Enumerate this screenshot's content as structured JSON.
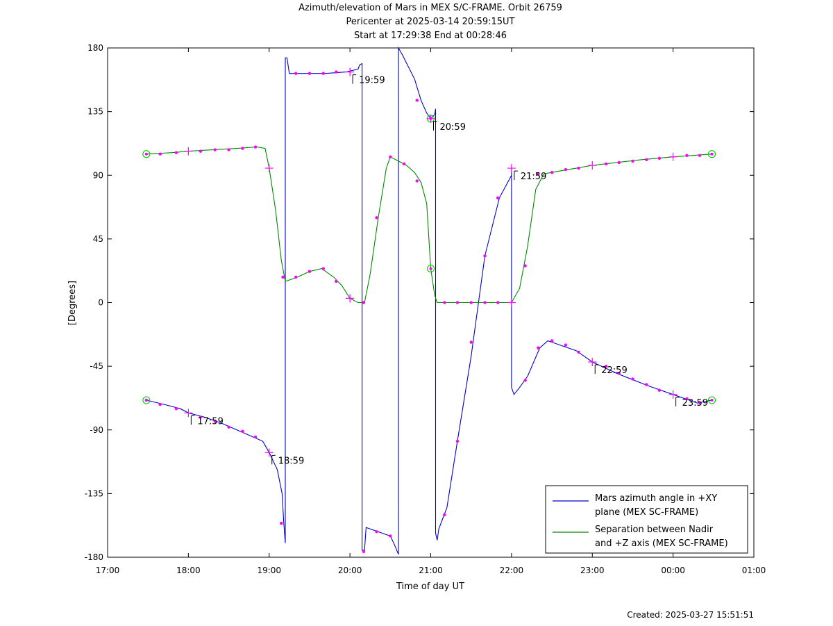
{
  "chart_data": {
    "type": "line",
    "title_lines": [
      "Azimuth/elevation of Mars in MEX S/C-FRAME.  Orbit 26759",
      "Pericenter at 2025-03-14 20:59:15UT",
      "Start at 17:29:38 End at 00:28:46"
    ],
    "xlabel": "Time of day UT",
    "ylabel": "[Degrees]",
    "x_unit": "hours since 17:00 UT",
    "xlim": [
      0,
      8
    ],
    "ylim": [
      -180,
      180
    ],
    "xticks": [
      {
        "x": 0,
        "label": "17:00"
      },
      {
        "x": 1,
        "label": "18:00"
      },
      {
        "x": 2,
        "label": "19:00"
      },
      {
        "x": 3,
        "label": "20:00"
      },
      {
        "x": 4,
        "label": "21:00"
      },
      {
        "x": 5,
        "label": "22:00"
      },
      {
        "x": 6,
        "label": "23:00"
      },
      {
        "x": 7,
        "label": "00:00"
      },
      {
        "x": 8,
        "label": "01:00"
      }
    ],
    "yticks": [
      {
        "y": 180,
        "label": "180"
      },
      {
        "y": 135,
        "label": "135"
      },
      {
        "y": 90,
        "label": "90"
      },
      {
        "y": 45,
        "label": "45"
      },
      {
        "y": 0,
        "label": "0"
      },
      {
        "y": -45,
        "label": "-45"
      },
      {
        "y": -90,
        "label": "-90"
      },
      {
        "y": -135,
        "label": "-135"
      },
      {
        "y": -180,
        "label": "-180"
      }
    ],
    "series": [
      {
        "name": "Mars azimuth angle in +XY plane (MEX SC-FRAME)",
        "legend_lines": [
          "Mars azimuth angle in +XY",
          "plane (MEX SC-FRAME)"
        ],
        "color": "#0000cc",
        "points": [
          [
            0.48,
            -69
          ],
          [
            0.7,
            -72
          ],
          [
            0.9,
            -75
          ],
          [
            1.0,
            -78
          ],
          [
            1.2,
            -81
          ],
          [
            1.4,
            -85
          ],
          [
            1.6,
            -90
          ],
          [
            1.8,
            -95
          ],
          [
            1.92,
            -98
          ],
          [
            2.0,
            -106
          ],
          [
            2.1,
            -118
          ],
          [
            2.16,
            -135
          ],
          [
            2.18,
            -155
          ],
          [
            2.2,
            -170
          ],
          [
            2.2,
            -170
          ],
          [
            2.2,
            173
          ],
          [
            2.22,
            173
          ],
          [
            2.25,
            162
          ],
          [
            2.5,
            162
          ],
          [
            2.7,
            162
          ],
          [
            2.95,
            163
          ],
          [
            3.1,
            165
          ],
          [
            3.12,
            168
          ],
          [
            3.15,
            169
          ],
          [
            3.15,
            -175
          ],
          [
            3.18,
            -175
          ],
          [
            3.2,
            -159
          ],
          [
            3.35,
            -162
          ],
          [
            3.5,
            -165
          ],
          [
            3.55,
            -171
          ],
          [
            3.6,
            -178
          ],
          [
            3.6,
            -178
          ],
          [
            3.6,
            180
          ],
          [
            3.65,
            175
          ],
          [
            3.8,
            158
          ],
          [
            3.88,
            143
          ],
          [
            3.95,
            134
          ],
          [
            4.0,
            130
          ],
          [
            4.05,
            133
          ],
          [
            4.06,
            137
          ],
          [
            4.06,
            -163
          ],
          [
            4.08,
            -168
          ],
          [
            4.1,
            -160
          ],
          [
            4.2,
            -145
          ],
          [
            4.33,
            -98
          ],
          [
            4.5,
            -38
          ],
          [
            4.67,
            33
          ],
          [
            4.85,
            74
          ],
          [
            5.0,
            90
          ],
          [
            5.0,
            95
          ],
          [
            5.0,
            -60
          ],
          [
            5.03,
            -65
          ],
          [
            5.1,
            -60
          ],
          [
            5.2,
            -52
          ],
          [
            5.35,
            -32
          ],
          [
            5.45,
            -27
          ],
          [
            5.6,
            -30
          ],
          [
            5.8,
            -34
          ],
          [
            6.0,
            -42
          ],
          [
            6.3,
            -50
          ],
          [
            6.7,
            -59
          ],
          [
            7.0,
            -65
          ],
          [
            7.3,
            -71
          ],
          [
            7.48,
            -69
          ]
        ],
        "markers": [
          [
            0.48,
            -69
          ],
          [
            4.0,
            130
          ],
          [
            7.48,
            -69
          ]
        ],
        "plus_markers": [
          [
            1.0,
            -78
          ],
          [
            2.0,
            -106
          ],
          [
            3.0,
            163
          ],
          [
            4.0,
            130
          ],
          [
            5.0,
            95
          ],
          [
            6.0,
            -42
          ],
          [
            7.0,
            -65
          ]
        ],
        "dots": [
          [
            0.48,
            -69
          ],
          [
            0.65,
            -72
          ],
          [
            0.85,
            -75
          ],
          [
            1.15,
            -81
          ],
          [
            1.33,
            -84
          ],
          [
            1.5,
            -88
          ],
          [
            1.67,
            -91
          ],
          [
            1.83,
            -95
          ],
          [
            2.15,
            -156
          ],
          [
            2.33,
            162
          ],
          [
            2.5,
            162
          ],
          [
            2.67,
            162
          ],
          [
            2.83,
            163
          ],
          [
            3.17,
            -176
          ],
          [
            3.33,
            -162
          ],
          [
            3.5,
            -165
          ],
          [
            3.83,
            143
          ],
          [
            4.17,
            -150
          ],
          [
            4.33,
            -98
          ],
          [
            4.5,
            -28
          ],
          [
            4.67,
            33
          ],
          [
            4.83,
            74
          ],
          [
            5.17,
            -55
          ],
          [
            5.33,
            -32
          ],
          [
            5.5,
            -27
          ],
          [
            5.67,
            -30
          ],
          [
            5.83,
            -35
          ],
          [
            6.17,
            -45
          ],
          [
            6.33,
            -50
          ],
          [
            6.5,
            -54
          ],
          [
            6.67,
            -58
          ],
          [
            6.83,
            -62
          ],
          [
            7.17,
            -68
          ],
          [
            7.33,
            -71
          ]
        ]
      },
      {
        "name": "Separation between Nadir and +Z axis (MEX SC-FRAME)",
        "legend_lines": [
          "Separation between Nadir",
          "and +Z axis (MEX SC-FRAME)"
        ],
        "color": "#008800",
        "points": [
          [
            0.48,
            105
          ],
          [
            0.8,
            106
          ],
          [
            1.0,
            107
          ],
          [
            1.3,
            108
          ],
          [
            1.6,
            109
          ],
          [
            1.85,
            110
          ],
          [
            1.95,
            109
          ],
          [
            2.0,
            95
          ],
          [
            2.08,
            65
          ],
          [
            2.15,
            30
          ],
          [
            2.2,
            15
          ],
          [
            2.35,
            18
          ],
          [
            2.5,
            22
          ],
          [
            2.65,
            24
          ],
          [
            2.8,
            18
          ],
          [
            2.9,
            12
          ],
          [
            3.0,
            3
          ],
          [
            3.1,
            0
          ],
          [
            3.18,
            0
          ],
          [
            3.25,
            20
          ],
          [
            3.35,
            60
          ],
          [
            3.45,
            95
          ],
          [
            3.5,
            103
          ],
          [
            3.6,
            100
          ],
          [
            3.7,
            97
          ],
          [
            3.8,
            92
          ],
          [
            3.88,
            85
          ],
          [
            3.95,
            70
          ],
          [
            4.0,
            24
          ],
          [
            4.05,
            5
          ],
          [
            4.08,
            0
          ],
          [
            4.5,
            0
          ],
          [
            4.9,
            0
          ],
          [
            5.0,
            0
          ],
          [
            5.1,
            10
          ],
          [
            5.2,
            40
          ],
          [
            5.3,
            80
          ],
          [
            5.4,
            91
          ],
          [
            5.6,
            93
          ],
          [
            5.8,
            95
          ],
          [
            6.0,
            97
          ],
          [
            6.3,
            99
          ],
          [
            6.6,
            101
          ],
          [
            7.0,
            103
          ],
          [
            7.48,
            105
          ]
        ],
        "markers": [
          [
            0.48,
            105
          ],
          [
            4.0,
            24
          ],
          [
            7.48,
            105
          ]
        ],
        "plus_markers": [
          [
            1.0,
            107
          ],
          [
            2.0,
            95
          ],
          [
            3.0,
            3
          ],
          [
            5.0,
            0
          ],
          [
            6.0,
            97
          ],
          [
            7.0,
            103
          ]
        ],
        "dots": [
          [
            0.65,
            105
          ],
          [
            0.85,
            106
          ],
          [
            1.15,
            107
          ],
          [
            1.33,
            108
          ],
          [
            1.5,
            108
          ],
          [
            1.67,
            109
          ],
          [
            1.83,
            110
          ],
          [
            2.17,
            18
          ],
          [
            2.33,
            18
          ],
          [
            2.5,
            22
          ],
          [
            2.67,
            24
          ],
          [
            2.83,
            15
          ],
          [
            3.17,
            0
          ],
          [
            3.33,
            60
          ],
          [
            3.5,
            103
          ],
          [
            3.67,
            98
          ],
          [
            3.83,
            86
          ],
          [
            4.17,
            0
          ],
          [
            4.33,
            0
          ],
          [
            4.5,
            0
          ],
          [
            4.67,
            0
          ],
          [
            4.83,
            0
          ],
          [
            5.17,
            26
          ],
          [
            5.33,
            91
          ],
          [
            5.5,
            92
          ],
          [
            5.67,
            94
          ],
          [
            5.83,
            95
          ],
          [
            6.17,
            98
          ],
          [
            6.33,
            99
          ],
          [
            6.5,
            100
          ],
          [
            6.67,
            101
          ],
          [
            6.83,
            102
          ],
          [
            7.17,
            104
          ],
          [
            7.33,
            104
          ]
        ]
      }
    ],
    "time_labels": [
      {
        "x": 1.0,
        "y": -78,
        "text": "17:59"
      },
      {
        "x": 2.0,
        "y": -106,
        "text": "18:59"
      },
      {
        "x": 3.0,
        "y": 163,
        "text": "19:59"
      },
      {
        "x": 4.0,
        "y": 130,
        "text": "20:59"
      },
      {
        "x": 5.0,
        "y": 95,
        "text": "21:59"
      },
      {
        "x": 6.0,
        "y": -42,
        "text": "22:59"
      },
      {
        "x": 7.0,
        "y": -65,
        "text": "23:59"
      }
    ],
    "legend_position": "bottom-right",
    "grid": false
  },
  "footer": {
    "created": "Created: 2025-03-27 15:51:51"
  }
}
